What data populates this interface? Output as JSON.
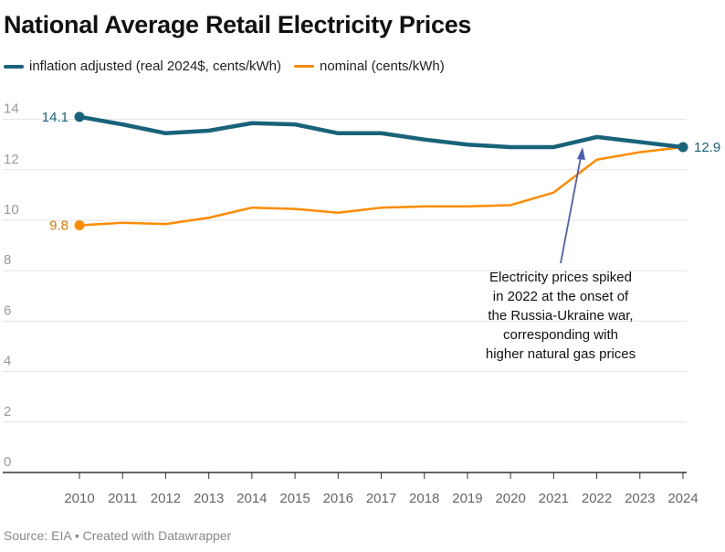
{
  "chart_data": {
    "type": "line",
    "title": "National Average Retail Electricity Prices",
    "x": [
      2010,
      2011,
      2012,
      2013,
      2014,
      2015,
      2016,
      2017,
      2018,
      2019,
      2020,
      2021,
      2022,
      2023,
      2024
    ],
    "series": [
      {
        "name": "inflation adjusted (real 2024$, cents/kWh)",
        "color": "#19637a",
        "values": [
          14.1,
          13.8,
          13.45,
          13.55,
          13.85,
          13.8,
          13.45,
          13.45,
          13.2,
          13.0,
          12.9,
          12.9,
          13.3,
          13.1,
          12.9
        ]
      },
      {
        "name": "nominal (cents/kWh)",
        "color": "#ff8c00",
        "values": [
          9.8,
          9.9,
          9.85,
          10.1,
          10.5,
          10.45,
          10.3,
          10.5,
          10.55,
          10.55,
          10.6,
          11.1,
          12.4,
          12.7,
          12.9
        ]
      }
    ],
    "ylim": [
      0,
      14
    ],
    "yticks": [
      0,
      2,
      4,
      6,
      8,
      10,
      12,
      14
    ],
    "grid": true,
    "legend": "top-left",
    "point_labels": [
      {
        "series": 0,
        "year": 2010,
        "text": "14.1"
      },
      {
        "series": 1,
        "year": 2010,
        "text": "9.8"
      },
      {
        "series": 0,
        "year": 2024,
        "text": "12.9"
      }
    ],
    "annotation": {
      "year": 2021.8,
      "lines": [
        "Electricity prices spiked",
        "in 2022 at the onset of",
        "the Russia-Ukraine war,",
        "corresponding with",
        "higher natural gas prices"
      ],
      "arrow_color": "#4a5fb5"
    },
    "source": "Source: EIA • Created with Datawrapper"
  }
}
